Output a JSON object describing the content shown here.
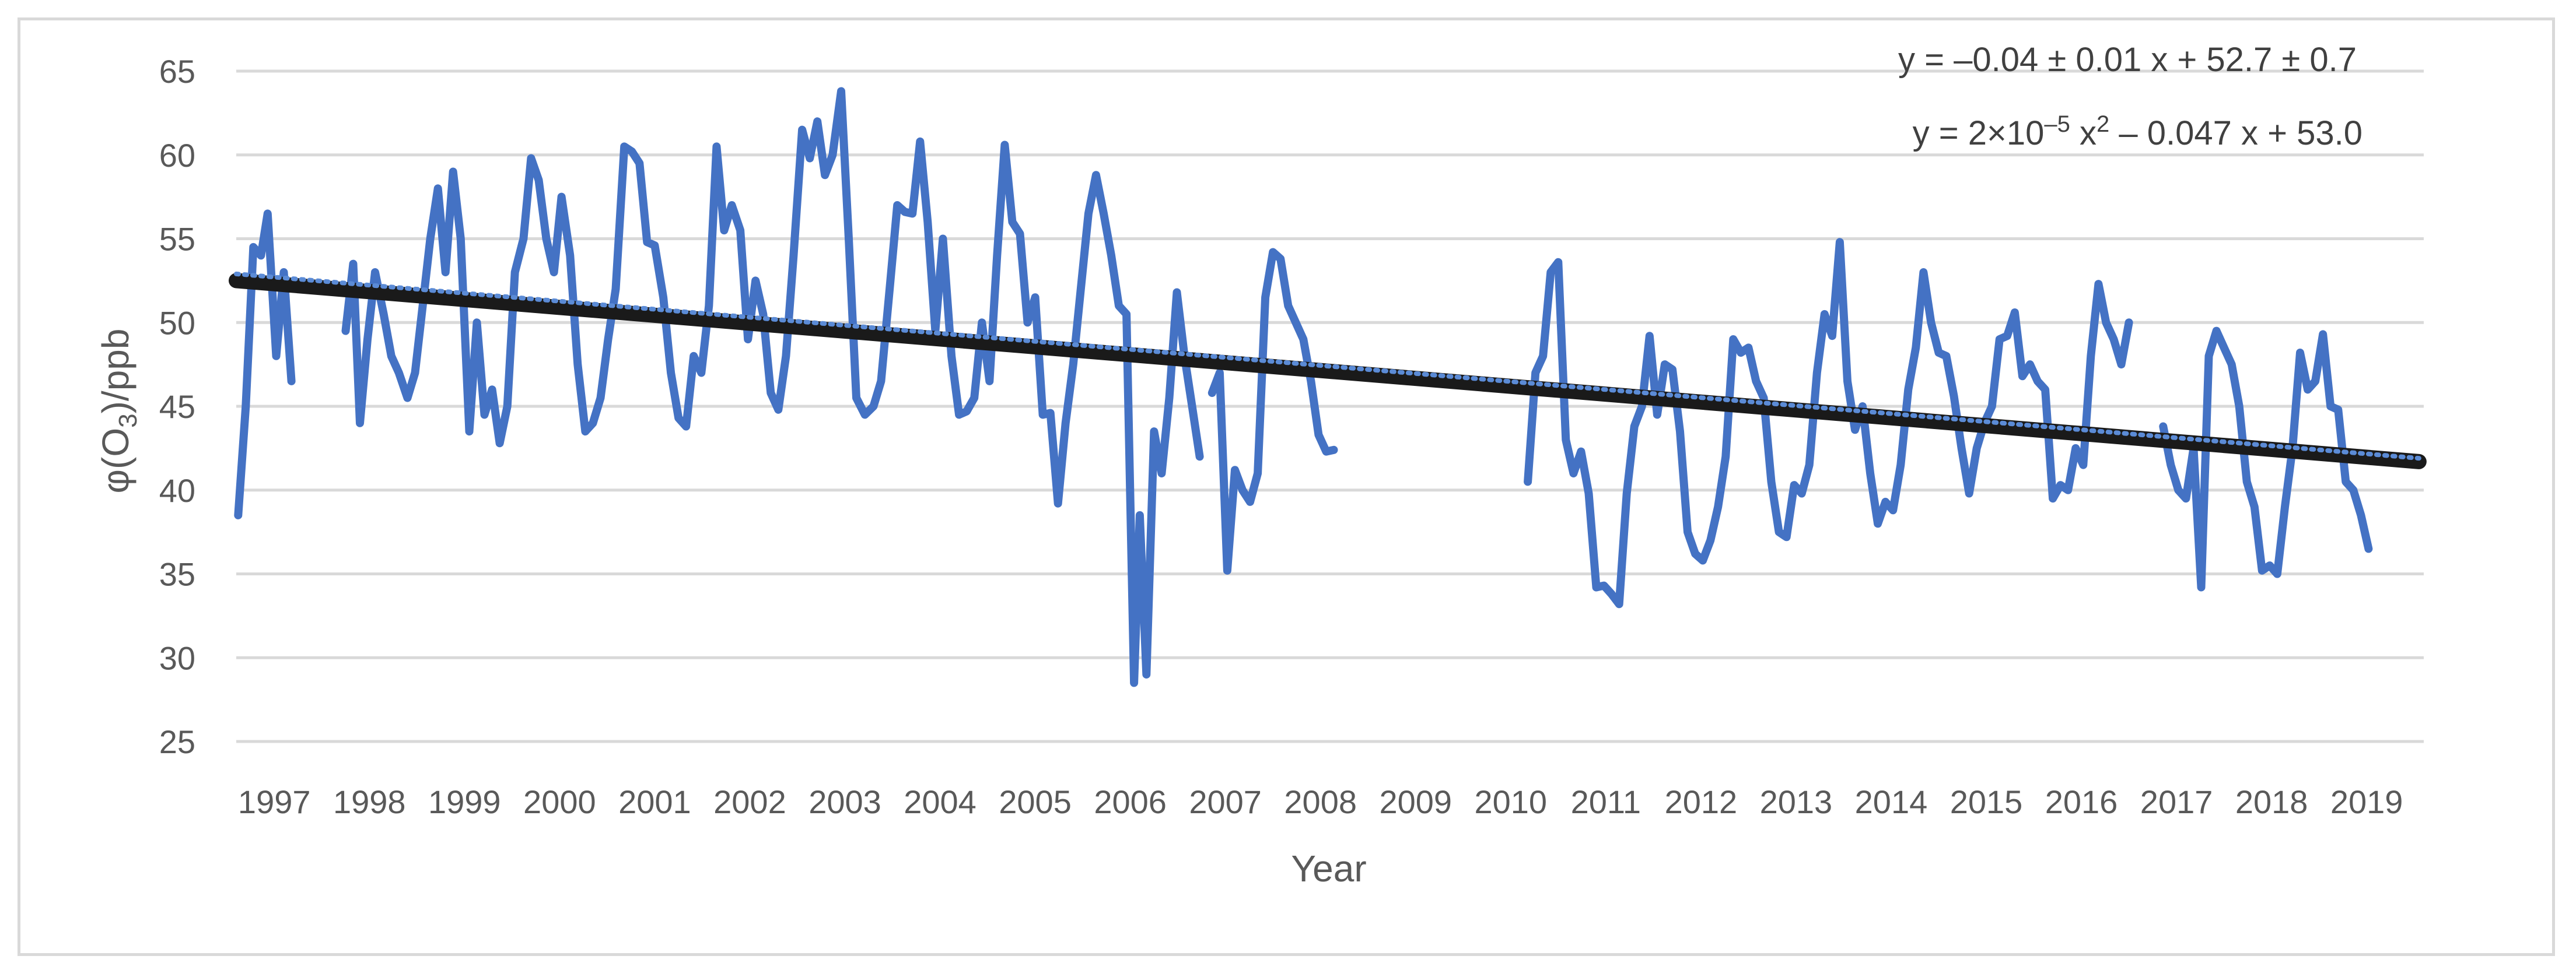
{
  "chart_data": {
    "type": "line",
    "title": "",
    "xlabel": "Year",
    "ylabel_parts": {
      "prefix": "φ(O",
      "sub": "3",
      "suffix": ")/ppb"
    },
    "ylim": [
      25,
      65
    ],
    "yticks": [
      25,
      30,
      35,
      40,
      45,
      50,
      55,
      60,
      65
    ],
    "xlim": [
      1996.6,
      2019.6
    ],
    "xtick_labels": [
      "1997",
      "1998",
      "1999",
      "2000",
      "2001",
      "2002",
      "2003",
      "2004",
      "2005",
      "2006",
      "2007",
      "2008",
      "2009",
      "2010",
      "2011",
      "2012",
      "2013",
      "2014",
      "2015",
      "2016",
      "2017",
      "2018",
      "2019"
    ],
    "grid": "horizontal",
    "legend": "none",
    "colors": {
      "series": "#4472c4",
      "trend_linear": "#1a1a1a",
      "trend_poly": "#5b8bd6",
      "grid": "#d9d9d9",
      "text": "#595959"
    },
    "equations": [
      {
        "text": "y = –0.04 ± 0.01  x + 52.7 ± 0.7"
      },
      {
        "parts": [
          "y = 2×10",
          "–5",
          " x",
          "2",
          " – 0.047 x + 53.0"
        ]
      }
    ],
    "series": [
      {
        "segments": [
          [
            [
              1996.62,
              38.5
            ],
            [
              1996.7,
              45
            ],
            [
              1996.78,
              54.5
            ],
            [
              1996.86,
              54
            ],
            [
              1996.93,
              56.5
            ],
            [
              1997.02,
              48
            ],
            [
              1997.1,
              53
            ],
            [
              1997.18,
              46.5
            ]
          ],
          [
            [
              1997.75,
              49.5
            ],
            [
              1997.83,
              53.5
            ],
            [
              1997.9,
              44
            ],
            [
              1997.98,
              49
            ],
            [
              1998.06,
              53
            ],
            [
              1998.15,
              50.5
            ],
            [
              1998.23,
              48
            ],
            [
              1998.31,
              47
            ],
            [
              1998.4,
              45.5
            ],
            [
              1998.48,
              47
            ],
            [
              1998.56,
              51
            ],
            [
              1998.64,
              55
            ],
            [
              1998.72,
              58
            ],
            [
              1998.8,
              53
            ],
            [
              1998.88,
              59
            ],
            [
              1998.96,
              55
            ],
            [
              1999.05,
              43.5
            ],
            [
              1999.13,
              50
            ],
            [
              1999.21,
              44.5
            ],
            [
              1999.29,
              46
            ],
            [
              1999.37,
              42.8
            ],
            [
              1999.45,
              45
            ],
            [
              1999.53,
              53
            ],
            [
              1999.62,
              55
            ],
            [
              1999.7,
              59.8
            ],
            [
              1999.78,
              58.5
            ],
            [
              1999.86,
              55
            ],
            [
              1999.94,
              53
            ],
            [
              2000.02,
              57.5
            ],
            [
              2000.11,
              54
            ],
            [
              2000.19,
              47.5
            ],
            [
              2000.27,
              43.5
            ],
            [
              2000.35,
              44
            ],
            [
              2000.43,
              45.5
            ],
            [
              2000.51,
              49
            ],
            [
              2000.59,
              52
            ],
            [
              2000.68,
              60.5
            ],
            [
              2000.76,
              60.2
            ],
            [
              2000.84,
              59.5
            ],
            [
              2000.92,
              54.8
            ],
            [
              2001.0,
              54.6
            ],
            [
              2001.09,
              51.5
            ],
            [
              2001.17,
              47
            ],
            [
              2001.25,
              44.3
            ],
            [
              2001.33,
              43.8
            ],
            [
              2001.41,
              48
            ],
            [
              2001.49,
              47
            ],
            [
              2001.57,
              51
            ],
            [
              2001.65,
              60.5
            ],
            [
              2001.73,
              55.5
            ],
            [
              2001.81,
              57
            ],
            [
              2001.9,
              55.5
            ],
            [
              2001.98,
              49
            ],
            [
              2002.06,
              52.5
            ],
            [
              2002.14,
              50.5
            ],
            [
              2002.22,
              45.8
            ],
            [
              2002.3,
              44.8
            ],
            [
              2002.38,
              48
            ],
            [
              2002.46,
              54
            ],
            [
              2002.55,
              61.5
            ],
            [
              2002.63,
              59.8
            ],
            [
              2002.71,
              62
            ],
            [
              2002.79,
              58.8
            ],
            [
              2002.87,
              60
            ],
            [
              2002.96,
              63.8
            ],
            [
              2003.04,
              55
            ],
            [
              2003.12,
              45.5
            ],
            [
              2003.21,
              44.5
            ],
            [
              2003.3,
              45
            ],
            [
              2003.38,
              46.5
            ],
            [
              2003.47,
              52
            ],
            [
              2003.55,
              57
            ],
            [
              2003.63,
              56.6
            ],
            [
              2003.71,
              56.5
            ],
            [
              2003.79,
              60.8
            ],
            [
              2003.87,
              56
            ],
            [
              2003.95,
              49.5
            ],
            [
              2004.03,
              55
            ],
            [
              2004.12,
              48
            ],
            [
              2004.2,
              44.5
            ],
            [
              2004.28,
              44.7
            ],
            [
              2004.36,
              45.5
            ],
            [
              2004.44,
              50
            ],
            [
              2004.52,
              46.5
            ],
            [
              2004.6,
              54
            ],
            [
              2004.68,
              60.6
            ],
            [
              2004.76,
              56
            ],
            [
              2004.84,
              55.3
            ],
            [
              2004.92,
              50
            ],
            [
              2005.0,
              51.5
            ],
            [
              2005.08,
              44.5
            ],
            [
              2005.16,
              44.6
            ],
            [
              2005.24,
              39.2
            ],
            [
              2005.32,
              44
            ],
            [
              2005.4,
              47.5
            ],
            [
              2005.48,
              52
            ],
            [
              2005.56,
              56.5
            ],
            [
              2005.64,
              58.8
            ],
            [
              2005.72,
              56.5
            ],
            [
              2005.8,
              54
            ],
            [
              2005.88,
              51
            ],
            [
              2005.96,
              50.5
            ],
            [
              2006.04,
              28.5
            ],
            [
              2006.1,
              38.5
            ],
            [
              2006.17,
              29
            ],
            [
              2006.25,
              43.5
            ],
            [
              2006.33,
              41
            ],
            [
              2006.41,
              45.5
            ],
            [
              2006.49,
              51.8
            ],
            [
              2006.57,
              48
            ],
            [
              2006.65,
              45
            ],
            [
              2006.73,
              42
            ]
          ],
          [
            [
              2006.86,
              45.8
            ],
            [
              2006.94,
              47
            ],
            [
              2007.02,
              35.2
            ],
            [
              2007.1,
              41.2
            ],
            [
              2007.18,
              40
            ],
            [
              2007.26,
              39.3
            ],
            [
              2007.34,
              41
            ],
            [
              2007.42,
              51.5
            ],
            [
              2007.5,
              54.2
            ],
            [
              2007.58,
              53.8
            ],
            [
              2007.66,
              51
            ],
            [
              2007.74,
              50
            ],
            [
              2007.82,
              49
            ],
            [
              2007.9,
              46.5
            ],
            [
              2007.98,
              43.3
            ],
            [
              2008.06,
              42.3
            ],
            [
              2008.14,
              42.4
            ]
          ],
          [
            [
              2010.18,
              40.5
            ],
            [
              2010.26,
              47
            ],
            [
              2010.34,
              48
            ],
            [
              2010.42,
              53
            ],
            [
              2010.5,
              53.6
            ],
            [
              2010.58,
              43
            ],
            [
              2010.66,
              41
            ],
            [
              2010.74,
              42.3
            ],
            [
              2010.82,
              39.8
            ],
            [
              2010.9,
              34.2
            ],
            [
              2010.98,
              34.3
            ],
            [
              2011.06,
              33.8
            ],
            [
              2011.14,
              33.2
            ],
            [
              2011.22,
              39.8
            ],
            [
              2011.3,
              43.8
            ],
            [
              2011.38,
              45
            ],
            [
              2011.46,
              49.2
            ],
            [
              2011.54,
              44.5
            ],
            [
              2011.62,
              47.5
            ],
            [
              2011.7,
              47.2
            ],
            [
              2011.78,
              43.5
            ],
            [
              2011.86,
              37.5
            ],
            [
              2011.94,
              36.2
            ],
            [
              2012.02,
              35.8
            ],
            [
              2012.1,
              37
            ],
            [
              2012.18,
              39
            ],
            [
              2012.26,
              42
            ],
            [
              2012.34,
              49
            ],
            [
              2012.42,
              48.2
            ],
            [
              2012.5,
              48.5
            ],
            [
              2012.58,
              46.5
            ],
            [
              2012.66,
              45.5
            ],
            [
              2012.74,
              40.5
            ],
            [
              2012.82,
              37.5
            ],
            [
              2012.9,
              37.2
            ],
            [
              2012.98,
              40.3
            ],
            [
              2013.06,
              39.8
            ],
            [
              2013.14,
              41.5
            ],
            [
              2013.22,
              47
            ],
            [
              2013.3,
              50.5
            ],
            [
              2013.38,
              49.2
            ],
            [
              2013.46,
              54.8
            ],
            [
              2013.54,
              46.5
            ],
            [
              2013.62,
              43.6
            ],
            [
              2013.7,
              45
            ],
            [
              2013.78,
              41
            ],
            [
              2013.86,
              38
            ],
            [
              2013.94,
              39.3
            ],
            [
              2014.02,
              38.8
            ],
            [
              2014.1,
              41.5
            ],
            [
              2014.18,
              46
            ],
            [
              2014.26,
              48.5
            ],
            [
              2014.34,
              53
            ],
            [
              2014.42,
              50
            ],
            [
              2014.5,
              48.2
            ],
            [
              2014.58,
              48
            ],
            [
              2014.66,
              45.6
            ],
            [
              2014.74,
              42.5
            ],
            [
              2014.82,
              39.8
            ],
            [
              2014.9,
              42.5
            ],
            [
              2014.98,
              44
            ],
            [
              2015.06,
              45
            ],
            [
              2015.14,
              49
            ],
            [
              2015.22,
              49.2
            ],
            [
              2015.3,
              50.6
            ],
            [
              2015.38,
              46.8
            ],
            [
              2015.46,
              47.5
            ],
            [
              2015.54,
              46.5
            ],
            [
              2015.62,
              46
            ],
            [
              2015.7,
              39.5
            ],
            [
              2015.78,
              40.3
            ],
            [
              2015.86,
              40
            ],
            [
              2015.94,
              42.5
            ],
            [
              2016.02,
              41.5
            ],
            [
              2016.1,
              48
            ],
            [
              2016.18,
              52.3
            ],
            [
              2016.26,
              50
            ],
            [
              2016.34,
              49
            ],
            [
              2016.42,
              47.5
            ],
            [
              2016.5,
              50
            ]
          ],
          [
            [
              2016.86,
              43.8
            ],
            [
              2016.94,
              41.5
            ],
            [
              2017.02,
              40
            ],
            [
              2017.1,
              39.5
            ],
            [
              2017.18,
              42.5
            ],
            [
              2017.26,
              34.2
            ],
            [
              2017.34,
              48
            ],
            [
              2017.42,
              49.5
            ],
            [
              2017.5,
              48.5
            ],
            [
              2017.58,
              47.5
            ],
            [
              2017.66,
              45
            ],
            [
              2017.74,
              40.5
            ],
            [
              2017.82,
              39
            ],
            [
              2017.9,
              35.2
            ],
            [
              2017.98,
              35.5
            ],
            [
              2018.06,
              35
            ],
            [
              2018.14,
              39
            ],
            [
              2018.22,
              42.5
            ],
            [
              2018.3,
              48.2
            ],
            [
              2018.38,
              46
            ],
            [
              2018.46,
              46.5
            ],
            [
              2018.54,
              49.3
            ],
            [
              2018.62,
              45
            ],
            [
              2018.7,
              44.8
            ],
            [
              2018.78,
              40.5
            ],
            [
              2018.86,
              40
            ],
            [
              2018.94,
              38.5
            ],
            [
              2019.02,
              36.5
            ]
          ]
        ]
      }
    ],
    "trendlines": [
      {
        "kind": "linear",
        "x": [
          1996.6,
          2019.55
        ],
        "y": [
          52.5,
          41.7
        ]
      },
      {
        "kind": "polynomial",
        "x": [
          1996.6,
          2019.55
        ],
        "y": [
          52.9,
          41.9
        ]
      }
    ]
  }
}
